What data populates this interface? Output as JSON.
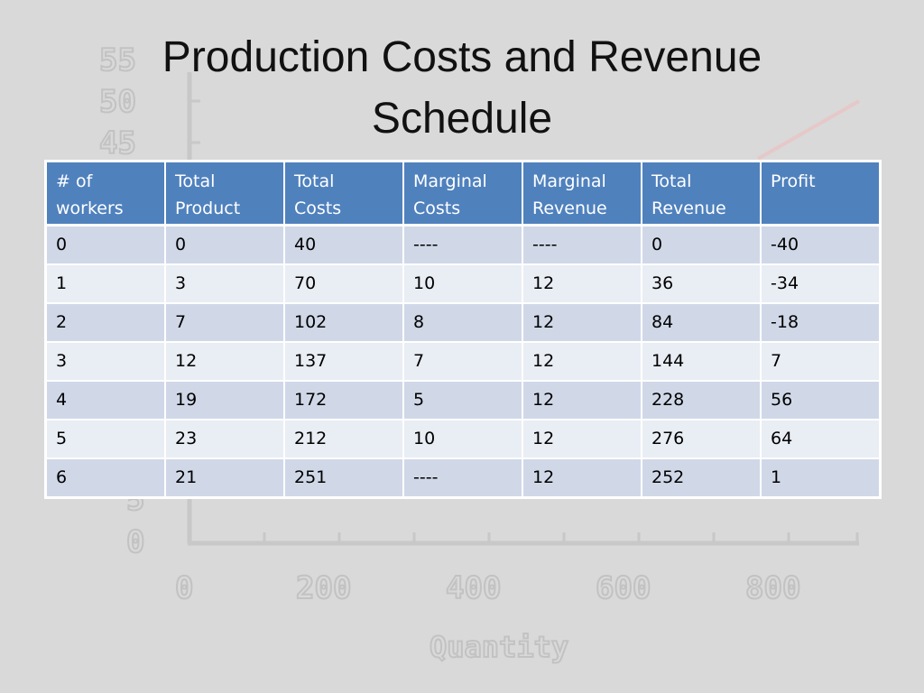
{
  "slide": {
    "title_line1": "Production Costs and Revenue",
    "title_line2": "Schedule"
  },
  "colors": {
    "background": "#d9d9d9",
    "header_fill": "#4f81bd",
    "row_band_dark": "#d0d8e8",
    "row_band_light": "#e9edf4",
    "watermark": "#c2c2c2",
    "watermark_line": "#e6c8c8"
  },
  "watermark_chart": {
    "y_ticks": [
      "55",
      "50",
      "45",
      "5",
      "0"
    ],
    "x_ticks": [
      "0",
      "200",
      "400",
      "600",
      "800"
    ],
    "xlabel": "Quantity"
  },
  "table": {
    "headers": [
      [
        "# of",
        "workers"
      ],
      [
        "Total",
        "Product"
      ],
      [
        "Total",
        "Costs"
      ],
      [
        "Marginal",
        "Costs"
      ],
      [
        "Marginal",
        "Revenue"
      ],
      [
        "Total",
        "Revenue"
      ],
      [
        "Profit",
        ""
      ]
    ],
    "rows": [
      [
        "0",
        "0",
        "40",
        "----",
        "----",
        "0",
        "-40"
      ],
      [
        "1",
        "3",
        "70",
        "10",
        "12",
        "36",
        "-34"
      ],
      [
        "2",
        "7",
        "102",
        "8",
        "12",
        "84",
        "-18"
      ],
      [
        "3",
        "12",
        "137",
        "7",
        "12",
        "144",
        "7"
      ],
      [
        "4",
        "19",
        "172",
        "5",
        "12",
        "228",
        "56"
      ],
      [
        "5",
        "23",
        "212",
        "10",
        "12",
        "276",
        "64"
      ],
      [
        "6",
        "21",
        "251",
        "----",
        "12",
        "252",
        "1"
      ]
    ]
  }
}
